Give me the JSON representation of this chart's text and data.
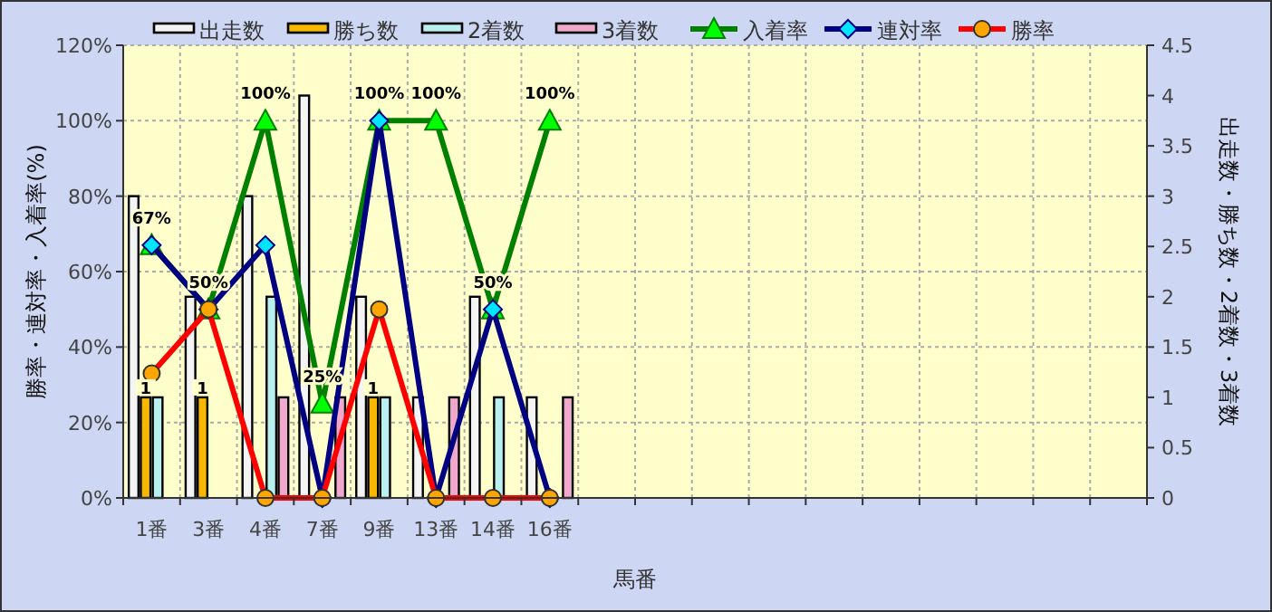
{
  "chart_data": {
    "type": "bar",
    "xlabel": "馬番",
    "ylabel": "勝率・連対率・入着率(%)",
    "y2label": "出走数・勝ち数・2着数・3着数",
    "categories": [
      "1番",
      "3番",
      "4番",
      "7番",
      "9番",
      "13番",
      "14番",
      "16番",
      null,
      null,
      null,
      null,
      null,
      null,
      null,
      null,
      null,
      null
    ],
    "ylim": [
      0,
      120
    ],
    "yticks": [
      {
        "value": 0,
        "label": "0%"
      },
      {
        "value": 20,
        "label": "20%"
      },
      {
        "value": 40,
        "label": "40%"
      },
      {
        "value": 60,
        "label": "60%"
      },
      {
        "value": 80,
        "label": "80%"
      },
      {
        "value": 100,
        "label": "100%"
      },
      {
        "value": 120,
        "label": "120%"
      }
    ],
    "y2lim": [
      0,
      4.5
    ],
    "y2ticks": [
      0,
      0.5,
      1,
      1.5,
      2,
      2.5,
      3,
      3.5,
      4,
      4.5
    ],
    "grid": true,
    "legend": "top",
    "series": [
      {
        "name": "出走数",
        "axis": "y2",
        "color": "#f4f4f4",
        "values": [
          3,
          2,
          3,
          4,
          2,
          1,
          2,
          1,
          null,
          null,
          null,
          null,
          null,
          null,
          null,
          null,
          null,
          null
        ]
      },
      {
        "name": "勝ち数",
        "axis": "y2",
        "color": "#f8b800",
        "values": [
          1,
          1,
          0,
          0,
          1,
          0,
          0,
          0,
          null,
          null,
          null,
          null,
          null,
          null,
          null,
          null,
          null,
          null
        ],
        "value_labels": [
          "1",
          "1",
          null,
          null,
          "1",
          null,
          null,
          null,
          null,
          null,
          null,
          null,
          null,
          null,
          null,
          null,
          null,
          null
        ]
      },
      {
        "name": "2着数",
        "axis": "y2",
        "color": "#b8f0f0",
        "values": [
          1,
          0,
          2,
          0,
          1,
          0,
          1,
          0,
          null,
          null,
          null,
          null,
          null,
          null,
          null,
          null,
          null,
          null
        ]
      },
      {
        "name": "3着数",
        "axis": "y2",
        "color": "#f0a8cc",
        "values": [
          0,
          0,
          1,
          1,
          0,
          1,
          0,
          1,
          null,
          null,
          null,
          null,
          null,
          null,
          null,
          null,
          null,
          null
        ]
      },
      {
        "name": "入着率",
        "type": "line",
        "axis": "y",
        "color": "#008000",
        "marker": "triangle",
        "values": [
          67,
          50,
          100,
          25,
          100,
          100,
          50,
          100,
          null,
          null,
          null,
          null,
          null,
          null,
          null,
          null,
          null,
          null
        ],
        "value_labels": [
          "67%",
          "50%",
          "100%",
          "25%",
          "100%",
          "100%",
          "50%",
          "100%",
          null,
          null,
          null,
          null,
          null,
          null,
          null,
          null,
          null,
          null
        ]
      },
      {
        "name": "連対率",
        "type": "line",
        "axis": "y",
        "color": "#000080",
        "marker": "diamond",
        "values": [
          67,
          50,
          67,
          0,
          100,
          0,
          50,
          0,
          null,
          null,
          null,
          null,
          null,
          null,
          null,
          null,
          null,
          null
        ]
      },
      {
        "name": "勝率",
        "type": "line",
        "axis": "y",
        "color": "#ff0000",
        "marker": "circle",
        "values": [
          33,
          50,
          0,
          0,
          50,
          0,
          0,
          0,
          null,
          null,
          null,
          null,
          null,
          null,
          null,
          null,
          null,
          null
        ]
      }
    ]
  }
}
